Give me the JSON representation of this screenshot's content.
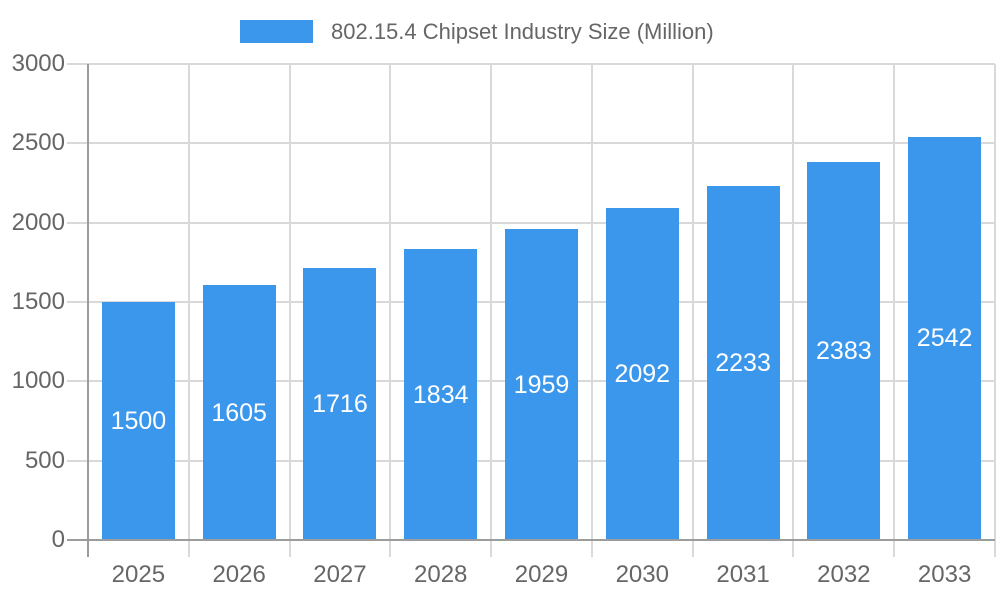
{
  "legend": {
    "swatch_color": "#3B97EC"
  },
  "chart_data": {
    "type": "bar",
    "title": "802.15.4 Chipset Industry Size (Million)",
    "categories": [
      "2025",
      "2026",
      "2027",
      "2028",
      "2029",
      "2030",
      "2031",
      "2032",
      "2033"
    ],
    "values": [
      1500,
      1605,
      1716,
      1834,
      1959,
      2092,
      2233,
      2383,
      2542
    ],
    "xlabel": "",
    "ylabel": "",
    "ylim": [
      0,
      3000
    ],
    "yticks": [
      0,
      500,
      1000,
      1500,
      2000,
      2500,
      3000
    ],
    "legend_position": "top",
    "grid": true,
    "value_label_position": "inside-center",
    "colors": {
      "bar": "#3B97EC",
      "grid": "#D9D9D9",
      "axis": "#9C9C9C",
      "tick_label": "#666666",
      "legend_label": "#666666",
      "value_label": "#FFFFFF",
      "background": "#FFFFFF"
    }
  }
}
